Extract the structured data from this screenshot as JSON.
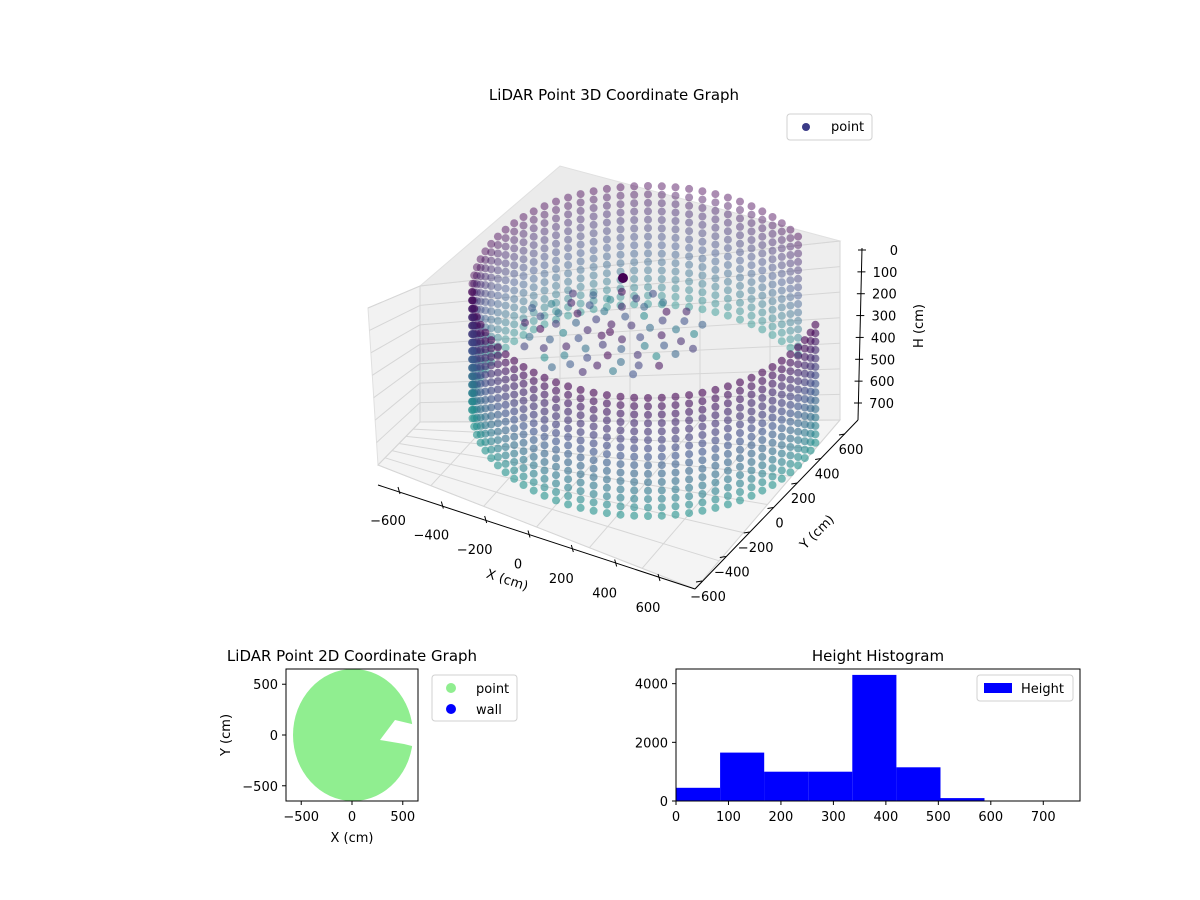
{
  "colors": {
    "background": "#ffffff",
    "pane": "#f2f2f2",
    "grid": "#d6d6d6",
    "viridis_dark": "#440154",
    "viridis_mid": "#3b528b",
    "viridis_teal": "#21918c",
    "legend_point_3d": "#3b3b87",
    "point_2d": "#90ee90",
    "wall_2d": "#0000ff",
    "histogram": "#0000ff"
  },
  "chart_data": [
    {
      "type": "scatter",
      "title": "LiDAR Point 3D Coordinate Graph",
      "xlabel": "X (cm)",
      "ylabel": "Y (cm)",
      "zlabel": "H (cm)",
      "x_ticks": [
        "−600",
        "−400",
        "−200",
        "0",
        "200",
        "400",
        "600"
      ],
      "y_ticks": [
        "−600",
        "−400",
        "−200",
        "0",
        "200",
        "400",
        "600"
      ],
      "z_ticks": [
        "0",
        "100",
        "200",
        "300",
        "400",
        "500",
        "600",
        "700"
      ],
      "xlim": [
        -650,
        650
      ],
      "ylim": [
        -650,
        650
      ],
      "zlim": [
        0,
        750
      ],
      "z_inverted": true,
      "legend": {
        "entries": [
          "point"
        ],
        "placement": "upper-right"
      },
      "grid": true,
      "description_of_shape": "circular wall of points around the scanner, radius about 600 cm, open on one side",
      "series": [
        {
          "name": "point",
          "shape": "ring-wall",
          "radius": 600,
          "h_min": 0,
          "h_max": 700,
          "gap_angle_deg": [
            -40,
            25
          ]
        }
      ]
    },
    {
      "type": "scatter",
      "title": "LiDAR Point 2D Coordinate Graph",
      "xlabel": "X (cm)",
      "ylabel": "Y (cm)",
      "x_ticks": [
        "−500",
        "0",
        "500"
      ],
      "y_ticks": [
        "500",
        "0",
        "−500"
      ],
      "xlim": [
        -650,
        650
      ],
      "ylim": [
        -650,
        650
      ],
      "legend": {
        "entries": [
          "point",
          "wall"
        ],
        "placement": "outside-right"
      },
      "series": [
        {
          "name": "point",
          "shape": "filled-disc",
          "radius": 600
        },
        {
          "name": "wall"
        }
      ]
    },
    {
      "type": "bar",
      "title": "Height Histogram",
      "xlabel": "",
      "ylabel": "",
      "x_ticks": [
        "0",
        "100",
        "200",
        "300",
        "400",
        "500",
        "600",
        "700"
      ],
      "y_ticks": [
        "0",
        "2000",
        "4000"
      ],
      "xlim": [
        0,
        770
      ],
      "ylim": [
        0,
        4500
      ],
      "legend": {
        "entries": [
          "Height"
        ],
        "placement": "upper-right"
      },
      "bin_edges": [
        0,
        84,
        168,
        252,
        336,
        420,
        504,
        588,
        672,
        756
      ],
      "values": [
        450,
        1650,
        1000,
        1000,
        4300,
        1150,
        100,
        5,
        5
      ],
      "series": [
        {
          "name": "Height"
        }
      ]
    }
  ]
}
